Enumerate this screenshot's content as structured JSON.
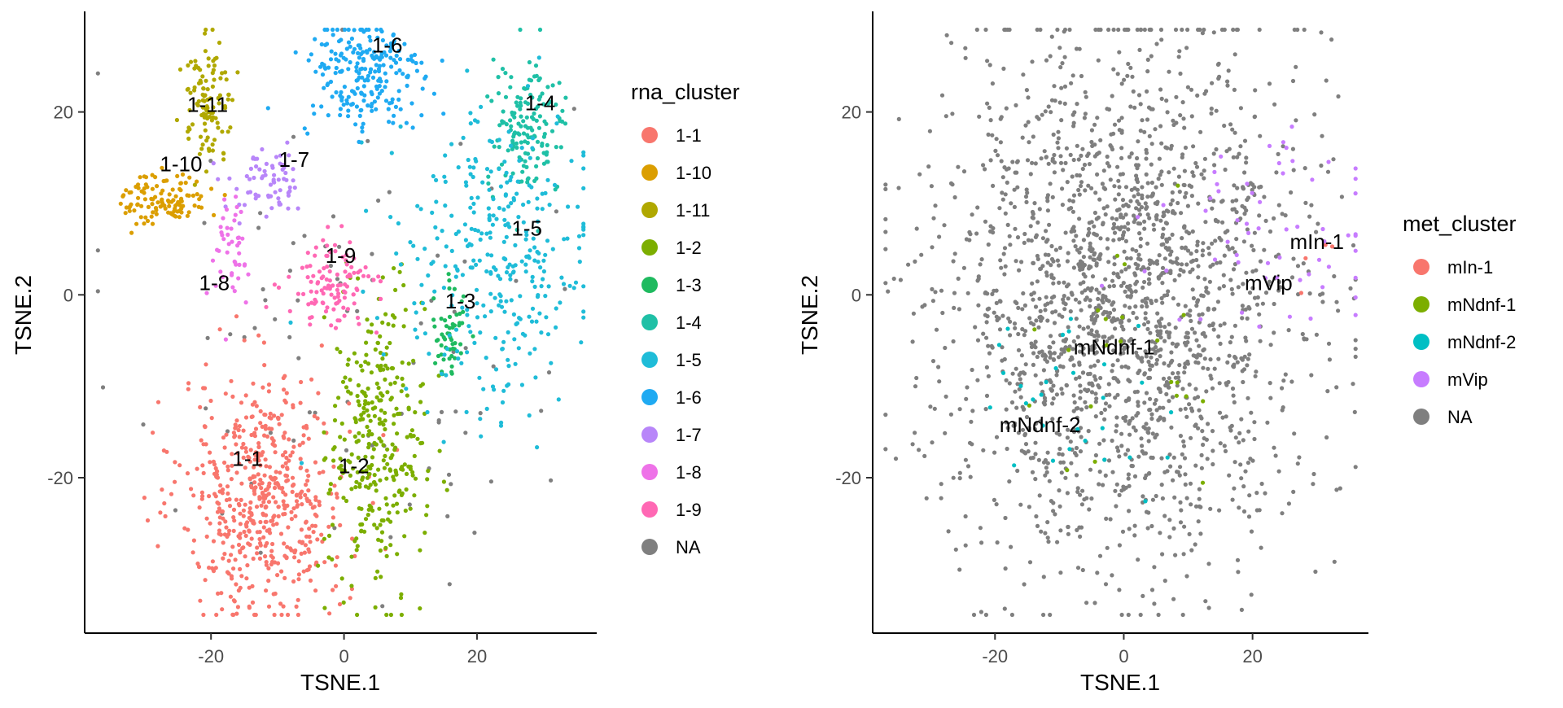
{
  "chart_data": [
    {
      "type": "scatter",
      "xlabel": "TSNE.1",
      "ylabel": "TSNE.2",
      "xlim": [
        -39,
        38
      ],
      "ylim": [
        -37,
        31
      ],
      "x_ticks": [
        -20,
        0,
        20
      ],
      "y_ticks": [
        -20,
        0,
        20
      ],
      "grid": false,
      "legend_position": "right",
      "legend": {
        "title": "rna_cluster",
        "entries": [
          {
            "label": "1-1",
            "color": "#F8766D"
          },
          {
            "label": "1-10",
            "color": "#DB9E00"
          },
          {
            "label": "1-11",
            "color": "#B0A800"
          },
          {
            "label": "1-2",
            "color": "#7CAE00"
          },
          {
            "label": "1-3",
            "color": "#1FBA5F"
          },
          {
            "label": "1-4",
            "color": "#1FC0A6"
          },
          {
            "label": "1-5",
            "color": "#1FBCD8"
          },
          {
            "label": "1-6",
            "color": "#1FAAF2"
          },
          {
            "label": "1-7",
            "color": "#B886F9"
          },
          {
            "label": "1-8",
            "color": "#EE72E8"
          },
          {
            "label": "1-9",
            "color": "#FF68B4"
          },
          {
            "label": "NA",
            "color": "#7F7F7F"
          }
        ]
      },
      "annotations": [
        {
          "text": "1-1",
          "x": -14.5,
          "y": -18.7
        },
        {
          "text": "1-10",
          "x": -24.5,
          "y": 13.5
        },
        {
          "text": "1-11",
          "x": -20.5,
          "y": 20
        },
        {
          "text": "1-2",
          "x": 1.5,
          "y": -19.5
        },
        {
          "text": "1-3",
          "x": 17.5,
          "y": -1.5
        },
        {
          "text": "1-4",
          "x": 29.5,
          "y": 20.2
        },
        {
          "text": "1-5",
          "x": 27.5,
          "y": 6.5
        },
        {
          "text": "1-6",
          "x": 6.5,
          "y": 26.5
        },
        {
          "text": "1-7",
          "x": -7.5,
          "y": 14
        },
        {
          "text": "1-8",
          "x": -19.5,
          "y": 0.5
        },
        {
          "text": "1-9",
          "x": -0.5,
          "y": 3.5
        }
      ],
      "point_clusters": [
        {
          "label": "1-1",
          "n": 560,
          "cx": -12,
          "cy": -22,
          "sx": 6.2,
          "sy": 6.5
        },
        {
          "label": "1-10",
          "n": 120,
          "cx": -27,
          "cy": 10.5,
          "sx": 3.2,
          "sy": 1.5
        },
        {
          "label": "1-11",
          "n": 110,
          "cx": -20.5,
          "cy": 21,
          "sx": 2,
          "sy": 3.2
        },
        {
          "label": "1-2",
          "n": 330,
          "cx": 5,
          "cy": -16,
          "sx": 3.6,
          "sy": 8
        },
        {
          "label": "1-3",
          "n": 55,
          "cx": 16,
          "cy": -4.5,
          "sx": 1.3,
          "sy": 2.6
        },
        {
          "label": "1-4",
          "n": 150,
          "cx": 27.5,
          "cy": 18,
          "sx": 3,
          "sy": 3.6
        },
        {
          "label": "1-5",
          "n": 330,
          "cx": 23,
          "cy": 4,
          "sx": 7.5,
          "sy": 8
        },
        {
          "label": "1-6",
          "n": 230,
          "cx": 3,
          "cy": 24,
          "sx": 4.5,
          "sy": 3.6
        },
        {
          "label": "1-7",
          "n": 70,
          "cx": -11.5,
          "cy": 12,
          "sx": 3,
          "sy": 1.8
        },
        {
          "label": "1-8",
          "n": 45,
          "cx": -17,
          "cy": 5.5,
          "sx": 1.6,
          "sy": 3.2
        },
        {
          "label": "1-9",
          "n": 110,
          "cx": -2,
          "cy": 1,
          "sx": 3.2,
          "sy": 2.3
        },
        {
          "label": "NA",
          "n": 90,
          "cx": 0,
          "cy": -5,
          "sx": 17,
          "sy": 15
        }
      ]
    },
    {
      "type": "scatter",
      "xlabel": "TSNE.1",
      "ylabel": "TSNE.2",
      "xlim": [
        -39,
        38
      ],
      "ylim": [
        -37,
        31
      ],
      "x_ticks": [
        -20,
        0,
        20
      ],
      "y_ticks": [
        -20,
        0,
        20
      ],
      "grid": false,
      "legend_position": "right",
      "legend": {
        "title": "met_cluster",
        "entries": [
          {
            "label": "mIn-1",
            "color": "#F8766D"
          },
          {
            "label": "mNdnf-1",
            "color": "#7CAE00"
          },
          {
            "label": "mNdnf-2",
            "color": "#00BFC4"
          },
          {
            "label": "mVip",
            "color": "#C77CFF"
          },
          {
            "label": "NA",
            "color": "#7F7F7F"
          }
        ]
      },
      "annotations": [
        {
          "text": "mIn-1",
          "x": 30,
          "y": 5
        },
        {
          "text": "mVip",
          "x": 22.5,
          "y": 0.5
        },
        {
          "text": "mNdnf-1",
          "x": -1.5,
          "y": -6.5
        },
        {
          "text": "mNdnf-2",
          "x": -13,
          "y": -15
        }
      ],
      "point_clusters": [
        {
          "label": "mIn-1",
          "n": 4,
          "cx": 30,
          "cy": 3,
          "sx": 2,
          "sy": 3
        },
        {
          "label": "mNdnf-1",
          "n": 22,
          "cx": 0,
          "cy": -6,
          "sx": 8,
          "sy": 9
        },
        {
          "label": "mNdnf-2",
          "n": 30,
          "cx": -8,
          "cy": -13,
          "sx": 9,
          "sy": 4
        },
        {
          "label": "mVip",
          "n": 60,
          "cx": 22,
          "cy": 6,
          "sx": 9,
          "sy": 6
        },
        {
          "label": "NA",
          "n": 2000,
          "cx": 0,
          "cy": 0,
          "sx": 14,
          "sy": 14
        }
      ]
    }
  ]
}
